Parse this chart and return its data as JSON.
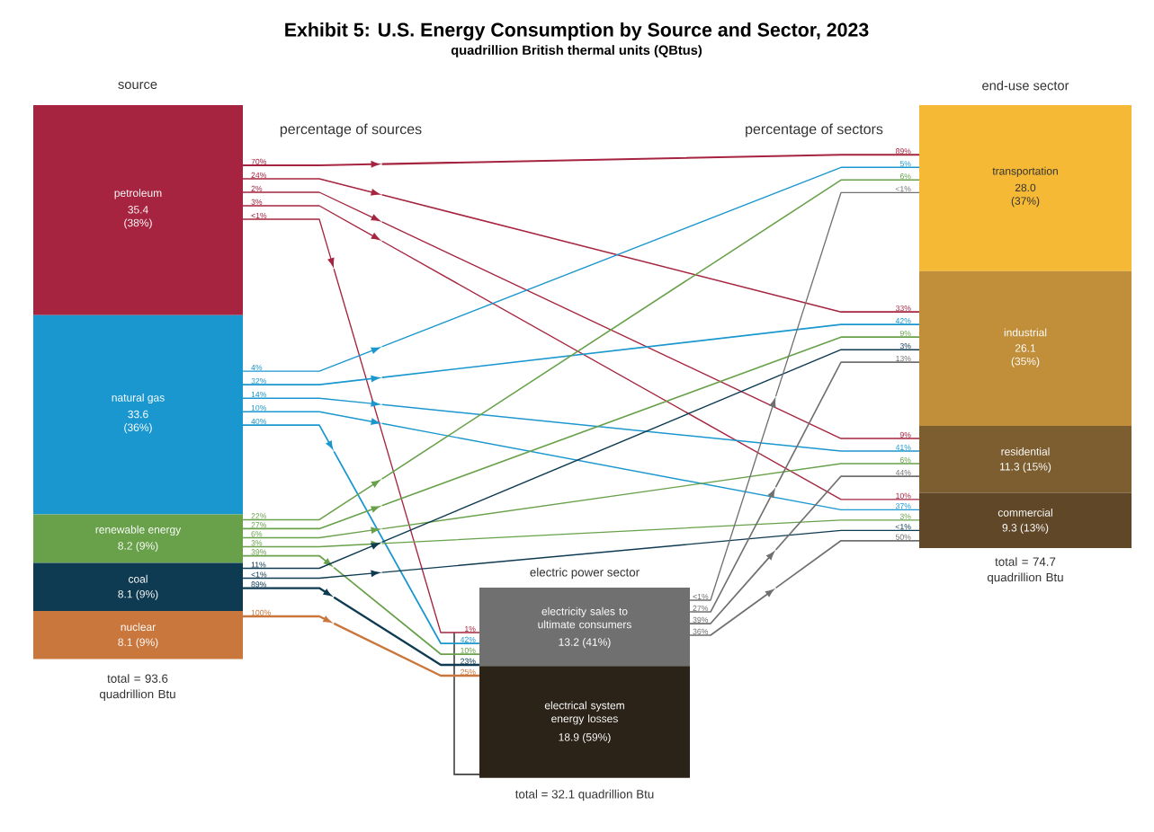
{
  "chart_data": {
    "type": "other",
    "title": "Exhibit 5: U.S. Energy Consumption by Source and Sector, 2023",
    "subtitle": "quadrillion British thermal units (QBtus)",
    "categories": [
      "petroleum",
      "natural gas",
      "renewable energy",
      "coal",
      "nuclear",
      "electricity sales to ultimate consumers",
      "electrical system energy losses",
      "transportation",
      "industrial",
      "residential",
      "commercial"
    ],
    "values": [
      35.4,
      33.6,
      8.2,
      8.1,
      8.1,
      13.2,
      18.9,
      28.0,
      26.1,
      11.3,
      9.3
    ],
    "value_labels": [
      "35.4 (38%)",
      "33.6 (36%)",
      "8.2 (9%)",
      "8.1 (9%)",
      "8.1 (9%)",
      "13.2 (41%)",
      "18.9 (59%)",
      "28.0 (37%)",
      "26.1 (35%)",
      "11.3 (15%)",
      "9.3 (13%)"
    ],
    "colors": [
      "#a6243f",
      "#1b97cf",
      "#68a14a",
      "#0e3a52",
      "#c9773d",
      "#707070",
      "#2b2218",
      "#f5b935",
      "#c18e3a",
      "#7c5e31",
      "#5f4728"
    ],
    "annotations": [
      "source",
      "percentage of sources",
      "percentage of sectors",
      "end-use sector",
      "electric power sector",
      "total = 93.6 quadrillion Btu",
      "total = 74.7 quadrillion Btu",
      "total = 32.1 quadrillion Btu"
    ],
    "series": [
      {
        "color": "#a6243f",
        "values": [
          70,
          null,
          null,
          null,
          null,
          null,
          null,
          89,
          null,
          null,
          null
        ],
        "value_labels": [
          "70%",
          null,
          null,
          null,
          null,
          null,
          null,
          "89%",
          null,
          null,
          null
        ]
      },
      {
        "color": "#a6243f",
        "values": [
          24,
          null,
          null,
          null,
          null,
          null,
          null,
          null,
          33,
          null,
          null
        ],
        "value_labels": [
          "24%",
          null,
          null,
          null,
          null,
          null,
          null,
          null,
          "33%",
          null,
          null
        ]
      },
      {
        "color": "#a6243f",
        "values": [
          2,
          null,
          null,
          null,
          null,
          null,
          null,
          null,
          null,
          9,
          null
        ],
        "value_labels": [
          "2%",
          null,
          null,
          null,
          null,
          null,
          null,
          null,
          null,
          "9%",
          null
        ]
      },
      {
        "color": "#a6243f",
        "values": [
          3,
          null,
          null,
          null,
          null,
          null,
          null,
          null,
          null,
          null,
          10
        ],
        "value_labels": [
          "3%",
          null,
          null,
          null,
          null,
          null,
          null,
          null,
          null,
          null,
          "10%"
        ]
      },
      {
        "color": "#a6243f",
        "values": [
          null,
          null,
          null,
          null,
          null,
          1,
          null,
          null,
          null,
          null,
          null
        ],
        "value_labels": [
          "<1%",
          null,
          null,
          null,
          null,
          "1%",
          null,
          null,
          null,
          null,
          null
        ]
      },
      {
        "color": "#1b97cf",
        "values": [
          null,
          4,
          null,
          null,
          null,
          null,
          null,
          5,
          null,
          null,
          null
        ],
        "value_labels": [
          null,
          "4%",
          null,
          null,
          null,
          null,
          null,
          "5%",
          null,
          null,
          null
        ]
      },
      {
        "color": "#1b97cf",
        "values": [
          null,
          32,
          null,
          null,
          null,
          null,
          null,
          null,
          42,
          null,
          null
        ],
        "value_labels": [
          null,
          "32%",
          null,
          null,
          null,
          null,
          null,
          null,
          "42%",
          null,
          null
        ]
      },
      {
        "color": "#1b97cf",
        "values": [
          null,
          14,
          null,
          null,
          null,
          null,
          null,
          null,
          null,
          41,
          null
        ],
        "value_labels": [
          null,
          "14%",
          null,
          null,
          null,
          null,
          null,
          null,
          null,
          "41%",
          null
        ]
      },
      {
        "color": "#1b97cf",
        "values": [
          null,
          10,
          null,
          null,
          null,
          null,
          null,
          null,
          null,
          null,
          37
        ],
        "value_labels": [
          null,
          "10%",
          null,
          null,
          null,
          null,
          null,
          null,
          null,
          null,
          "37%"
        ]
      },
      {
        "color": "#1b97cf",
        "values": [
          null,
          40,
          null,
          null,
          null,
          42,
          null,
          null,
          null,
          null,
          null
        ],
        "value_labels": [
          null,
          "40%",
          null,
          null,
          null,
          "42%",
          null,
          null,
          null,
          null,
          null
        ]
      },
      {
        "color": "#68a14a",
        "values": [
          null,
          null,
          22,
          null,
          null,
          null,
          null,
          6,
          null,
          null,
          null
        ],
        "value_labels": [
          null,
          null,
          "22%",
          null,
          null,
          null,
          null,
          "6%",
          null,
          null,
          null
        ]
      },
      {
        "color": "#68a14a",
        "values": [
          null,
          null,
          27,
          null,
          null,
          null,
          null,
          null,
          9,
          null,
          null
        ],
        "value_labels": [
          null,
          null,
          "27%",
          null,
          null,
          null,
          null,
          null,
          "9%",
          null,
          null
        ]
      },
      {
        "color": "#68a14a",
        "values": [
          null,
          null,
          6,
          null,
          null,
          null,
          null,
          null,
          null,
          6,
          null
        ],
        "value_labels": [
          null,
          null,
          "6%",
          null,
          null,
          null,
          null,
          null,
          null,
          "6%",
          null
        ]
      },
      {
        "color": "#68a14a",
        "values": [
          null,
          null,
          3,
          null,
          null,
          null,
          null,
          null,
          null,
          null,
          3
        ],
        "value_labels": [
          null,
          null,
          "3%",
          null,
          null,
          null,
          null,
          null,
          null,
          null,
          "3%"
        ]
      },
      {
        "color": "#68a14a",
        "values": [
          null,
          null,
          39,
          null,
          null,
          10,
          null,
          null,
          null,
          null,
          null
        ],
        "value_labels": [
          null,
          null,
          "39%",
          null,
          null,
          "10%",
          null,
          null,
          null,
          null,
          null
        ]
      },
      {
        "color": "#0e3a52",
        "values": [
          null,
          null,
          null,
          11,
          null,
          null,
          null,
          null,
          3,
          null,
          null
        ],
        "value_labels": [
          null,
          null,
          null,
          "11%",
          null,
          null,
          null,
          null,
          "3%",
          null,
          null
        ]
      },
      {
        "color": "#0e3a52",
        "values": [
          null,
          null,
          null,
          null,
          null,
          null,
          null,
          null,
          null,
          null,
          null
        ],
        "value_labels": [
          null,
          null,
          null,
          "<1%",
          null,
          null,
          null,
          null,
          null,
          null,
          "<1%"
        ]
      },
      {
        "color": "#0e3a52",
        "values": [
          null,
          null,
          null,
          89,
          null,
          23,
          null,
          null,
          null,
          null,
          null
        ],
        "value_labels": [
          null,
          null,
          null,
          "89%",
          null,
          "23%",
          null,
          null,
          null,
          null,
          null
        ]
      },
      {
        "color": "#c9773d",
        "values": [
          null,
          null,
          null,
          null,
          100,
          25,
          null,
          null,
          null,
          null,
          null
        ],
        "value_labels": [
          null,
          null,
          null,
          null,
          "100%",
          "25%",
          null,
          null,
          null,
          null,
          null
        ]
      },
      {
        "color": "#707070",
        "values": [
          null,
          null,
          null,
          null,
          null,
          null,
          null,
          null,
          null,
          null,
          null
        ],
        "value_labels": [
          null,
          null,
          null,
          null,
          null,
          "<1%",
          null,
          "<1%",
          null,
          null,
          null
        ]
      },
      {
        "color": "#707070",
        "values": [
          null,
          null,
          null,
          null,
          null,
          27,
          null,
          null,
          13,
          null,
          null
        ],
        "value_labels": [
          null,
          null,
          null,
          null,
          null,
          "27%",
          null,
          null,
          "13%",
          null,
          null
        ]
      },
      {
        "color": "#707070",
        "values": [
          null,
          null,
          null,
          null,
          null,
          39,
          null,
          null,
          null,
          44,
          null
        ],
        "value_labels": [
          null,
          null,
          null,
          null,
          null,
          "39%",
          null,
          null,
          null,
          "44%",
          null
        ]
      },
      {
        "color": "#707070",
        "values": [
          null,
          null,
          null,
          null,
          null,
          36,
          null,
          null,
          null,
          null,
          50
        ],
        "value_labels": [
          null,
          null,
          null,
          null,
          null,
          "36%",
          null,
          null,
          null,
          null,
          "50%"
        ]
      }
    ]
  }
}
